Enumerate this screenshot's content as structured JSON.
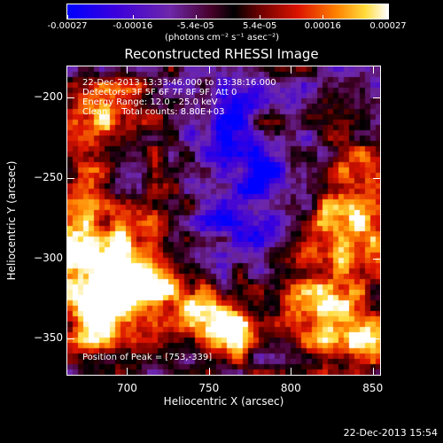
{
  "colorbar": {
    "tick_labels": [
      "-0.00027",
      "-0.00016",
      "-5.4e-05",
      "5.4e-05",
      "0.00016",
      "0.00027"
    ],
    "units": "(photons cm⁻² s⁻¹ asec⁻²)"
  },
  "title": "Reconstructed RHESSI Image",
  "annotations": {
    "time_range": "22-Dec-2013 13:33:46.000 to 13:38:16.000",
    "detectors": "Detectors: 3F 5F 6F 7F 8F 9F, Att 0",
    "energy_range": "Energy Range: 12.0 - 25.0 keV",
    "method": "Clean     Total counts: 8.80E+03",
    "peak_position": "Position of Peak = [753,-339]"
  },
  "footer_timestamp": "22-Dec-2013 15:54",
  "chart_data": {
    "type": "heatmap",
    "title": "Reconstructed RHESSI Image",
    "xlabel": "Heliocentric X (arcsec)",
    "ylabel": "Heliocentric Y (arcsec)",
    "xlim": [
      663,
      855
    ],
    "ylim": [
      -373,
      -180
    ],
    "x_ticks": [
      700,
      750,
      800,
      850
    ],
    "y_ticks": [
      -200,
      -250,
      -300,
      -350
    ],
    "x_tick_labels": [
      "700",
      "750",
      "800",
      "850"
    ],
    "y_tick_labels": [
      "−200",
      "−250",
      "−300",
      "−350"
    ],
    "value_range": [
      -0.00027,
      0.00027
    ],
    "peak_position": [
      753,
      -339
    ],
    "colormap": "blue-purple-red-orange-yellow-white"
  }
}
